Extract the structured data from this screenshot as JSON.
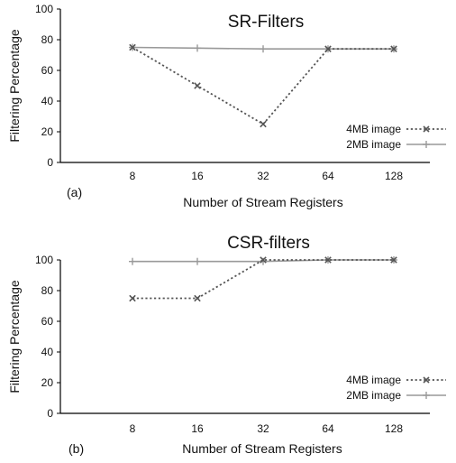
{
  "chart_data": [
    {
      "type": "line",
      "title": "SR-Filters",
      "panel_label": "(a)",
      "xlabel": "Number of Stream Registers",
      "ylabel": "Filtering Percentage",
      "categories": [
        "8",
        "16",
        "32",
        "64",
        "128"
      ],
      "ylim": [
        0,
        100
      ],
      "yticks": [
        "0",
        "20",
        "40",
        "60",
        "80",
        "100"
      ],
      "grid": false,
      "legend_position": "bottom-right",
      "series": [
        {
          "name": "4MB image",
          "values": [
            75,
            50,
            25,
            74,
            74
          ],
          "color": "#555555",
          "line_style": "dotted",
          "marker": "x"
        },
        {
          "name": "2MB image",
          "values": [
            75,
            74.5,
            74,
            74,
            74
          ],
          "color": "#999999",
          "line_style": "solid",
          "marker": "+"
        }
      ]
    },
    {
      "type": "line",
      "title": "CSR-filters",
      "panel_label": "(b)",
      "xlabel": "Number of Stream Registers",
      "ylabel": "Filtering Percentage",
      "categories": [
        "8",
        "16",
        "32",
        "64",
        "128"
      ],
      "ylim": [
        0,
        100
      ],
      "yticks": [
        "0",
        "20",
        "40",
        "60",
        "80",
        "100"
      ],
      "grid": false,
      "legend_position": "bottom-right",
      "series": [
        {
          "name": "4MB image",
          "values": [
            75,
            75,
            100,
            100,
            100
          ],
          "color": "#555555",
          "line_style": "dotted",
          "marker": "x"
        },
        {
          "name": "2MB image",
          "values": [
            99,
            99,
            99,
            100,
            100
          ],
          "color": "#999999",
          "line_style": "solid",
          "marker": "+"
        }
      ]
    }
  ]
}
